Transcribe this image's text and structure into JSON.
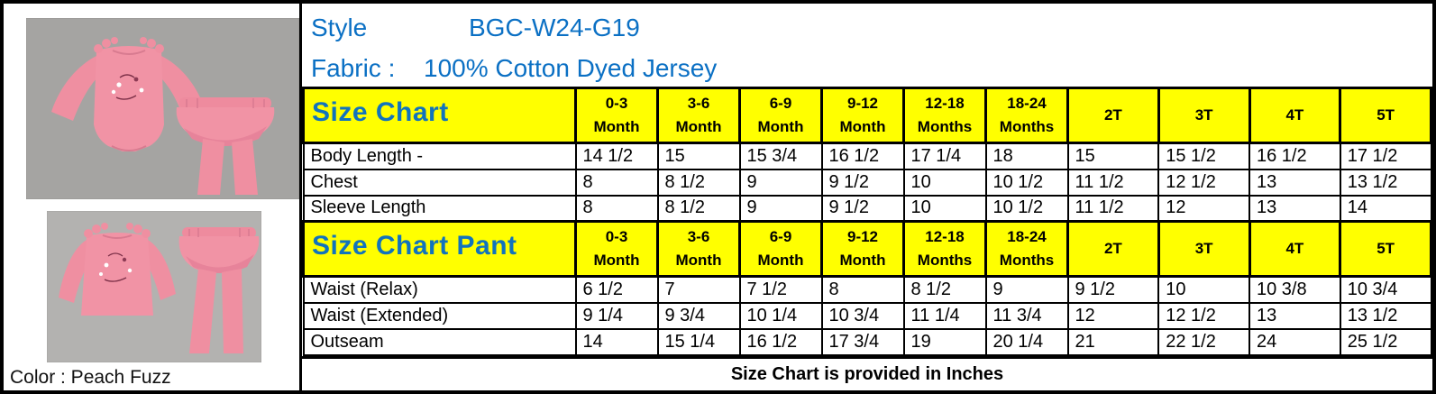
{
  "document": {
    "style_label": "Style",
    "style_value": "BGC-W24-G19",
    "fabric_label": "Fabric :",
    "fabric_value": "100% Cotton Dyed Jersey",
    "footer_note": "Size Chart is provided in Inches",
    "color_label": "Color : Peach Fuzz"
  },
  "size_columns": [
    {
      "size": "0-3",
      "unit": "Month"
    },
    {
      "size": "3-6",
      "unit": "Month"
    },
    {
      "size": "6-9",
      "unit": "Month"
    },
    {
      "size": "9-12",
      "unit": "Month"
    },
    {
      "size": "12-18",
      "unit": "Months"
    },
    {
      "size": "18-24",
      "unit": "Months"
    },
    {
      "size": "2T",
      "unit": ""
    },
    {
      "size": "3T",
      "unit": ""
    },
    {
      "size": "4T",
      "unit": ""
    },
    {
      "size": "5T",
      "unit": ""
    }
  ],
  "charts": [
    {
      "title": "Size Chart",
      "rows": [
        {
          "label": "Body Length -",
          "values": [
            "14 1/2",
            "15",
            "15 3/4",
            "16 1/2",
            "17 1/4",
            "18",
            "15",
            "15 1/2",
            "16 1/2",
            "17 1/2"
          ]
        },
        {
          "label": "Chest",
          "values": [
            "8",
            "8 1/2",
            "9",
            "9 1/2",
            "10",
            "10 1/2",
            "11 1/2",
            "12 1/2",
            "13",
            "13 1/2"
          ]
        },
        {
          "label": "Sleeve Length",
          "values": [
            "8",
            "8 1/2",
            "9",
            "9 1/2",
            "10",
            "10 1/2",
            "11 1/2",
            "12",
            "13",
            "14"
          ]
        }
      ]
    },
    {
      "title": "Size Chart Pant",
      "rows": [
        {
          "label": "Waist (Relax)",
          "values": [
            "6 1/2",
            "7",
            "7 1/2",
            "8",
            "8 1/2",
            "9",
            "9 1/2",
            "10",
            "10 3/8",
            "10 3/4"
          ]
        },
        {
          "label": "Waist (Extended)",
          "values": [
            "9 1/4",
            "9 3/4",
            "10 1/4",
            "10 3/4",
            "11 1/4",
            "11 3/4",
            "12",
            "12 1/2",
            "13",
            "13 1/2"
          ]
        },
        {
          "label": "Outseam",
          "values": [
            "14",
            "15 1/4",
            "16 1/2",
            "17 3/4",
            "19",
            "20 1/4",
            "21",
            "22 1/2",
            "24",
            "25 1/2"
          ]
        }
      ]
    }
  ],
  "colors": {
    "accent_blue": "#0b70c4",
    "title_blue": "#1173bd",
    "header_yellow": "#ffff00",
    "garment_pink": "#ef8fa1",
    "garment_pink_shade": "#df7b91",
    "photo1_background": "#a5a4a2",
    "photo2_background": "#b3b2b0"
  }
}
